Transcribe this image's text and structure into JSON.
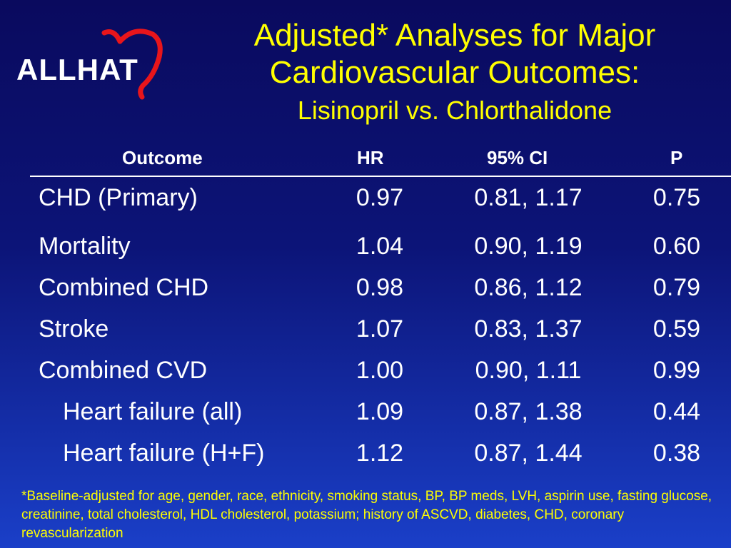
{
  "logo": {
    "text": "ALLHAT",
    "heart_color": "#e8151b"
  },
  "title": {
    "main": "Adjusted* Analyses for Major Cardiovascular Outcomes:",
    "sub": "Lisinopril vs. Chlorthalidone"
  },
  "table": {
    "headers": {
      "outcome": "Outcome",
      "hr": "HR",
      "ci": "95% CI",
      "p": "P"
    },
    "rows": [
      {
        "outcome": "CHD (Primary)",
        "hr": "0.97",
        "ci": "0.81, 1.17",
        "p": "0.75"
      },
      {
        "outcome": "Mortality",
        "hr": "1.04",
        "ci": "0.90, 1.19",
        "p": "0.60"
      },
      {
        "outcome": "Combined CHD",
        "hr": "0.98",
        "ci": "0.86, 1.12",
        "p": "0.79"
      },
      {
        "outcome": "Stroke",
        "hr": "1.07",
        "ci": "0.83, 1.37",
        "p": "0.59"
      },
      {
        "outcome": "Combined CVD",
        "hr": "1.00",
        "ci": "0.90, 1.11",
        "p": "0.99"
      },
      {
        "outcome": "Heart failure (all)",
        "hr": "1.09",
        "ci": "0.87, 1.38",
        "p": "0.44"
      },
      {
        "outcome": "Heart failure (H+F)",
        "hr": "1.12",
        "ci": "0.87, 1.44",
        "p": "0.38"
      }
    ]
  },
  "footnote": "*Baseline-adjusted for age, gender, race, ethnicity, smoking status, BP, BP meds, LVH, aspirin use, fasting glucose, creatinine, total cholesterol, HDL cholesterol, potassium; history of ASCVD, diabetes, CHD, coronary revascularization",
  "colors": {
    "title": "#ffff00",
    "text": "#ffffff",
    "background_top": "#0a0a5e",
    "background_bottom": "#1a3fc8"
  }
}
